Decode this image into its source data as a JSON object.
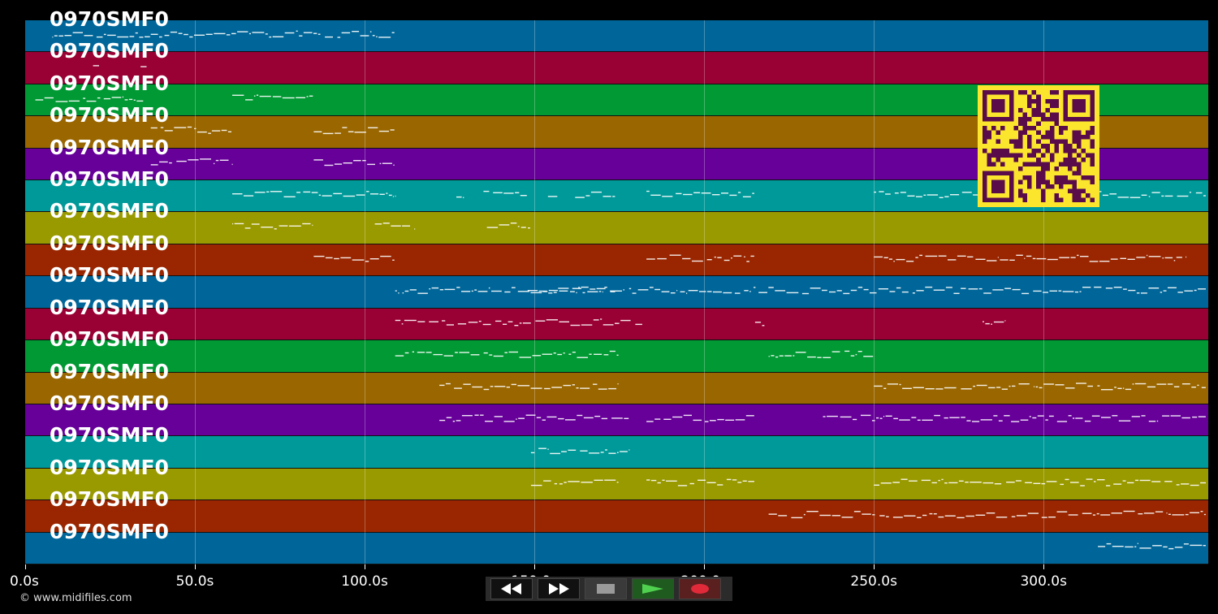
{
  "tracks": [
    {
      "label": "0970SMF0",
      "color": "#006699"
    },
    {
      "label": "0970SMF0",
      "color": "#990033"
    },
    {
      "label": "0970SMF0",
      "color": "#009933"
    },
    {
      "label": "0970SMF0",
      "color": "#996600"
    },
    {
      "label": "0970SMF0",
      "color": "#660099"
    },
    {
      "label": "0970SMF0",
      "color": "#009999"
    },
    {
      "label": "0970SMF0",
      "color": "#999900"
    },
    {
      "label": "0970SMF0",
      "color": "#992600"
    },
    {
      "label": "0970SMF0",
      "color": "#006699"
    },
    {
      "label": "0970SMF0",
      "color": "#990033"
    },
    {
      "label": "0970SMF0",
      "color": "#009933"
    },
    {
      "label": "0970SMF0",
      "color": "#996600"
    },
    {
      "label": "0970SMF0",
      "color": "#660099"
    },
    {
      "label": "0970SMF0",
      "color": "#009999"
    },
    {
      "label": "0970SMF0",
      "color": "#999900"
    },
    {
      "label": "0970SMF0",
      "color": "#992600"
    },
    {
      "label": "0970SMF0",
      "color": "#006699"
    }
  ],
  "timeline": {
    "ticks": [
      "0.0s",
      "50.0s",
      "100.0s",
      "150.0s",
      "200.0s",
      "250.0s",
      "300.0s"
    ],
    "tick_seconds": [
      0,
      50,
      100,
      150,
      200,
      250,
      300
    ],
    "max_seconds": 348.5
  },
  "note_segments": [
    [
      [
        8,
        37
      ],
      [
        37,
        109
      ]
    ],
    [
      [
        20,
        22
      ],
      [
        34,
        36
      ]
    ],
    [
      [
        3,
        35
      ],
      [
        61,
        85
      ]
    ],
    [
      [
        37,
        55
      ],
      [
        55,
        61
      ],
      [
        85,
        97
      ],
      [
        97,
        109
      ]
    ],
    [
      [
        37,
        61
      ],
      [
        85,
        109
      ]
    ],
    [
      [
        61,
        109
      ],
      [
        127,
        130
      ],
      [
        135,
        148
      ],
      [
        154,
        157
      ],
      [
        162,
        174
      ],
      [
        183,
        215
      ],
      [
        250,
        348
      ]
    ],
    [
      [
        61,
        85
      ],
      [
        103,
        115
      ],
      [
        136,
        149
      ]
    ],
    [
      [
        85,
        109
      ],
      [
        183,
        215
      ],
      [
        250,
        342
      ]
    ],
    [
      [
        109,
        348
      ],
      [
        148,
        174
      ]
    ],
    [
      [
        109,
        182
      ],
      [
        215,
        218
      ],
      [
        282,
        289
      ]
    ],
    [
      [
        109,
        175
      ],
      [
        219,
        250
      ]
    ],
    [
      [
        122,
        175
      ],
      [
        250,
        348
      ]
    ],
    [
      [
        122,
        178
      ],
      [
        183,
        215
      ],
      [
        235,
        348
      ]
    ],
    [
      [
        149,
        178
      ]
    ],
    [
      [
        149,
        175
      ],
      [
        183,
        215
      ],
      [
        250,
        348
      ]
    ],
    [
      [
        219,
        348
      ]
    ],
    [
      [
        316,
        348
      ]
    ]
  ],
  "copyright": "© www.midifiles.com",
  "transport": {
    "rewind_icon": "rewind-icon",
    "forward_icon": "fast-forward-icon",
    "stop_icon": "stop-icon",
    "play_icon": "play-icon",
    "record_icon": "record-icon",
    "play_color": "#4fd14f",
    "record_color": "#e02a3a"
  },
  "qr_icon": "qr-code-icon"
}
